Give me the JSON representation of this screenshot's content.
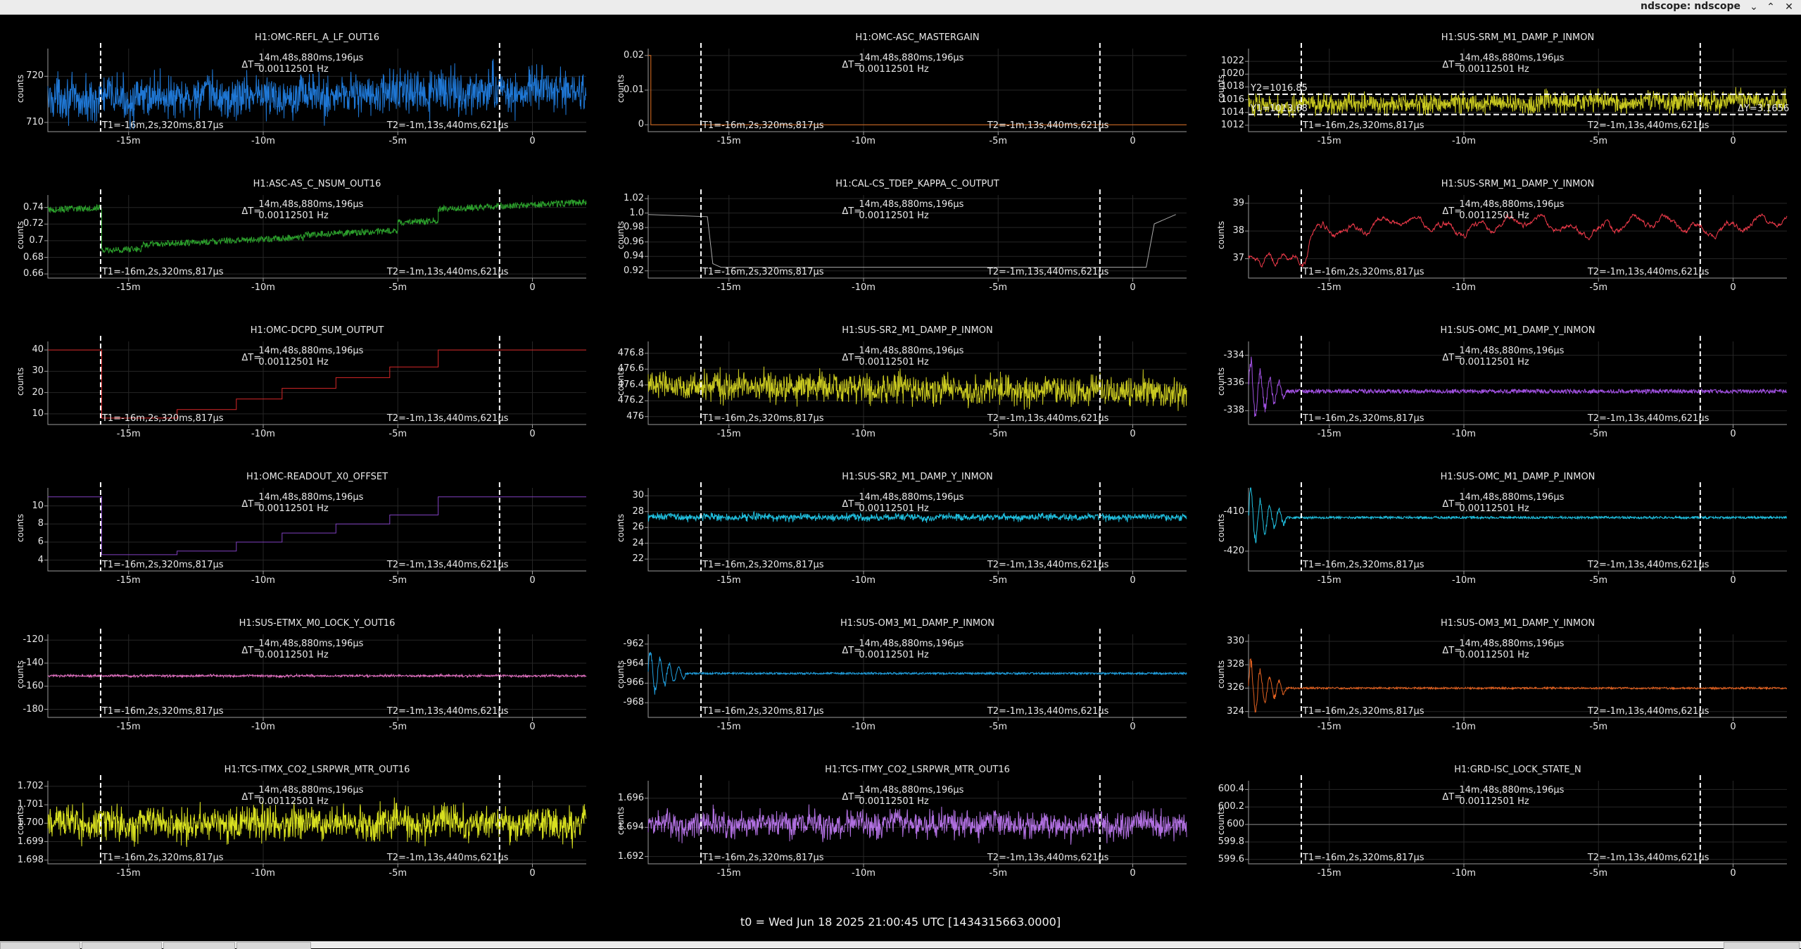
{
  "window": {
    "title": "ndscope: ndscope",
    "min_icon": "chevron-down-icon",
    "max_icon": "chevron-up-icon",
    "close_icon": "close-icon"
  },
  "common": {
    "delta_label": "ΔT=",
    "delta_time": "14m,48s,880ms,196μs",
    "delta_freq": "0.00112501 Hz",
    "t1_label": "T1=-16m,2s,320ms,817μs",
    "t2_label": "T2=-1m,13s,440ms,621μs",
    "ylabel": "counts",
    "xticks": [
      "-15m",
      "-10m",
      "-5m",
      "0"
    ]
  },
  "footer": "t0 = Wed Jun 18 2025 21:00:45 UTC [1434315663.0000]",
  "panels": [
    {
      "title": "H1:OMC-REFL_A_LF_OUT16",
      "color": "#1f77d4",
      "yticks": [
        "720",
        "710"
      ],
      "chart_data": {
        "type": "line",
        "kind": "noise",
        "level": 716,
        "amp": 3.5,
        "ylim": [
          708,
          726
        ],
        "trend": 1
      }
    },
    {
      "title": "H1:OMC-ASC_MASTERGAIN",
      "color": "#e07020",
      "yticks": [
        "0.02",
        "0.01",
        "0"
      ],
      "chart_data": {
        "type": "line",
        "kind": "step",
        "ylim": [
          -0.002,
          0.022
        ],
        "points": [
          [
            -18,
            0.02
          ],
          [
            -17.9,
            0.02
          ],
          [
            -17.9,
            0
          ],
          [
            2,
            0
          ]
        ]
      }
    },
    {
      "title": "H1:SUS-SRM_M1_DAMP_P_INMON",
      "color": "#c8c820",
      "yticks": [
        "1022",
        "1020",
        "1018",
        "1016",
        "1014",
        "1012"
      ],
      "annotations": [
        "Y2=1016.85",
        "Y1=1013.68",
        "ΔY=3.1656"
      ],
      "chart_data": {
        "type": "line",
        "kind": "noise",
        "level": 1015.5,
        "amp": 1.2,
        "ylim": [
          1011,
          1024
        ],
        "trend": 1,
        "y1": 1013.68,
        "y2": 1016.85
      }
    },
    {
      "title": "H1:ASC-AS_C_NSUM_OUT16",
      "color": "#2ca02c",
      "yticks": [
        "0.74",
        "0.72",
        "0.7",
        "0.68",
        "0.66"
      ],
      "chart_data": {
        "type": "line",
        "kind": "steps-noise",
        "ylim": [
          0.655,
          0.755
        ],
        "segments": [
          [
            -18,
            -16.0,
            0.737
          ],
          [
            -16.0,
            -14.5,
            0.688
          ],
          [
            -14.5,
            -8.5,
            0.695
          ],
          [
            -8.5,
            -5.0,
            0.707
          ],
          [
            -5.0,
            -3.5,
            0.722
          ],
          [
            -3.5,
            2,
            0.738
          ]
        ],
        "amp": 0.004
      }
    },
    {
      "title": "H1:CAL-CS_TDEP_KAPPA_C_OUTPUT",
      "color": "#aaaaaa",
      "yticks": [
        "1.02",
        "1.0",
        "0.98",
        "0.96",
        "0.94",
        "0.92"
      ],
      "chart_data": {
        "type": "line",
        "kind": "step",
        "ylim": [
          0.91,
          1.025
        ],
        "points": [
          [
            -18,
            0.998
          ],
          [
            -15.8,
            0.995
          ],
          [
            -15.6,
            0.93
          ],
          [
            -15.3,
            0.925
          ],
          [
            -1.2,
            0.925
          ],
          [
            0.5,
            0.925
          ],
          [
            0.8,
            0.985
          ],
          [
            1.6,
            0.998
          ]
        ]
      }
    },
    {
      "title": "H1:SUS-SRM_M1_DAMP_Y_INMON",
      "color": "#f03a4a",
      "yticks": [
        "39",
        "38",
        "37"
      ],
      "chart_data": {
        "type": "line",
        "kind": "wander",
        "level": 38.2,
        "amp": 0.4,
        "ylim": [
          36.3,
          39.3
        ],
        "start": 37.0
      }
    },
    {
      "title": "H1:OMC-DCPD_SUM_OUTPUT",
      "color": "#d62728",
      "yticks": [
        "40",
        "30",
        "20",
        "10"
      ],
      "chart_data": {
        "type": "line",
        "kind": "step",
        "ylim": [
          5,
          44
        ],
        "points": [
          [
            -18,
            40
          ],
          [
            -16.0,
            40
          ],
          [
            -16.0,
            8
          ],
          [
            -13.2,
            8
          ],
          [
            -13.2,
            12
          ],
          [
            -11.0,
            12
          ],
          [
            -11.0,
            17
          ],
          [
            -9.3,
            17
          ],
          [
            -9.3,
            22
          ],
          [
            -7.3,
            22
          ],
          [
            -7.3,
            27
          ],
          [
            -5.3,
            27
          ],
          [
            -5.3,
            32
          ],
          [
            -3.5,
            32
          ],
          [
            -3.5,
            40
          ],
          [
            2,
            40
          ]
        ]
      }
    },
    {
      "title": "H1:SUS-SR2_M1_DAMP_P_INMON",
      "color": "#c8c820",
      "yticks": [
        "476.8",
        "476.6",
        "476.4",
        "476.2",
        "476"
      ],
      "chart_data": {
        "type": "line",
        "kind": "noise",
        "level": 476.35,
        "amp": 0.14,
        "ylim": [
          475.9,
          476.95
        ],
        "trend": -1
      }
    },
    {
      "title": "H1:SUS-OMC_M1_DAMP_Y_INMON",
      "color": "#a050e0",
      "yticks": [
        "-334",
        "-336",
        "-338"
      ],
      "chart_data": {
        "type": "line",
        "kind": "ringdown",
        "level": -336.6,
        "amp": 0.15,
        "ylim": [
          -339,
          -333
        ],
        "ring": 2.5
      }
    },
    {
      "title": "H1:OMC-READOUT_X0_OFFSET",
      "color": "#8040c0",
      "yticks": [
        "10",
        "8",
        "6",
        "4"
      ],
      "chart_data": {
        "type": "line",
        "kind": "step",
        "ylim": [
          2.8,
          12
        ],
        "points": [
          [
            -18,
            11
          ],
          [
            -16.0,
            11
          ],
          [
            -16.0,
            4.6
          ],
          [
            -13.2,
            4.6
          ],
          [
            -13.2,
            5
          ],
          [
            -11.0,
            5
          ],
          [
            -11.0,
            6
          ],
          [
            -9.3,
            6
          ],
          [
            -9.3,
            7
          ],
          [
            -7.3,
            7
          ],
          [
            -7.3,
            8
          ],
          [
            -5.3,
            8
          ],
          [
            -5.3,
            9
          ],
          [
            -3.5,
            9
          ],
          [
            -3.5,
            11
          ],
          [
            2,
            11
          ]
        ]
      }
    },
    {
      "title": "H1:SUS-SR2_M1_DAMP_Y_INMON",
      "color": "#20c0e0",
      "yticks": [
        "30",
        "28",
        "26",
        "24",
        "22"
      ],
      "chart_data": {
        "type": "line",
        "kind": "noise",
        "level": 27.3,
        "amp": 0.35,
        "ylim": [
          20.5,
          31
        ],
        "trend": 0
      }
    },
    {
      "title": "H1:SUS-OMC_M1_DAMP_P_INMON",
      "color": "#20c0e0",
      "yticks": [
        "-410",
        "-420"
      ],
      "chart_data": {
        "type": "line",
        "kind": "ringdown",
        "level": -411.5,
        "amp": 0.3,
        "ylim": [
          -425,
          -404
        ],
        "ring": 8
      }
    },
    {
      "title": "H1:SUS-ETMX_M0_LOCK_Y_OUT16",
      "color": "#e070c0",
      "yticks": [
        "-120",
        "-140",
        "-160",
        "-180"
      ],
      "chart_data": {
        "type": "line",
        "kind": "noise",
        "level": -151,
        "amp": 0.8,
        "ylim": [
          -187,
          -115
        ],
        "trend": 0
      }
    },
    {
      "title": "H1:SUS-OM3_M1_DAMP_P_INMON",
      "color": "#20a0e0",
      "yticks": [
        "-962",
        "-964",
        "-966",
        "-968"
      ],
      "chart_data": {
        "type": "line",
        "kind": "ringdown",
        "level": -965,
        "amp": 0.1,
        "ylim": [
          -969.5,
          -961
        ],
        "ring": 2.5
      }
    },
    {
      "title": "H1:SUS-OM3_M1_DAMP_Y_INMON",
      "color": "#e06020",
      "yticks": [
        "330",
        "328",
        "326",
        "324"
      ],
      "chart_data": {
        "type": "line",
        "kind": "ringdown",
        "level": 326,
        "amp": 0.08,
        "ylim": [
          323.5,
          330.6
        ],
        "ring": 2.5
      }
    },
    {
      "title": "H1:TCS-ITMX_CO2_LSRPWR_MTR_OUT16",
      "color": "#d8e020",
      "yticks": [
        "1.702",
        "1.701",
        "1.700",
        "1.699",
        "1.698"
      ],
      "chart_data": {
        "type": "line",
        "kind": "noise",
        "level": 1.7,
        "amp": 0.0007,
        "ylim": [
          1.6978,
          1.7023
        ],
        "trend": 0
      }
    },
    {
      "title": "H1:TCS-ITMY_CO2_LSRPWR_MTR_OUT16",
      "color": "#b070e0",
      "yticks": [
        "1.696",
        "1.694",
        "1.692"
      ],
      "chart_data": {
        "type": "line",
        "kind": "noise",
        "level": 1.6942,
        "amp": 0.0007,
        "ylim": [
          1.6915,
          1.6972
        ],
        "trend": 0
      }
    },
    {
      "title": "H1:GRD-ISC_LOCK_STATE_N",
      "color": "#888888",
      "yticks": [
        "600.4",
        "600.2",
        "600",
        "599.8",
        "599.6"
      ],
      "chart_data": {
        "type": "line",
        "kind": "flat",
        "level": 600,
        "ylim": [
          599.55,
          600.5
        ]
      }
    }
  ]
}
